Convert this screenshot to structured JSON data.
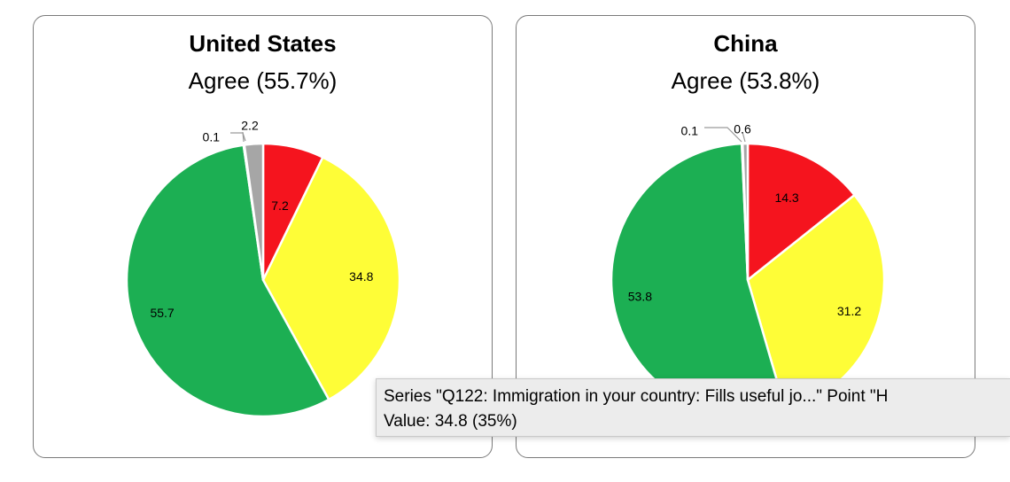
{
  "chart_data": [
    {
      "type": "pie",
      "title": "United States",
      "subtitle": "Agree (55.7%)",
      "slices": [
        {
          "label": "7.2",
          "value": 7.2,
          "color": "#f5141e"
        },
        {
          "label": "34.8",
          "value": 34.8,
          "color": "#fefd37"
        },
        {
          "label": "55.7",
          "value": 55.7,
          "color": "#1caf53"
        },
        {
          "label": "0.1",
          "value": 0.1,
          "color": "#ffffff"
        },
        {
          "label": "2.2",
          "value": 2.2,
          "color": "#a6a6a6"
        }
      ]
    },
    {
      "type": "pie",
      "title": "China",
      "subtitle": "Agree (53.8%)",
      "slices": [
        {
          "label": "14.3",
          "value": 14.3,
          "color": "#f5141e"
        },
        {
          "label": "31.2",
          "value": 31.2,
          "color": "#fefd37"
        },
        {
          "label": "53.8",
          "value": 53.8,
          "color": "#1caf53"
        },
        {
          "label": "0.1",
          "value": 0.1,
          "color": "#ffffff"
        },
        {
          "label": "0.6",
          "value": 0.6,
          "color": "#a6a6a6"
        }
      ]
    }
  ],
  "tooltip": {
    "line1": "Series \"Q122: Immigration in your country: Fills useful jo...\" Point \"H",
    "line2": "Value: 34.8 (35%)"
  }
}
